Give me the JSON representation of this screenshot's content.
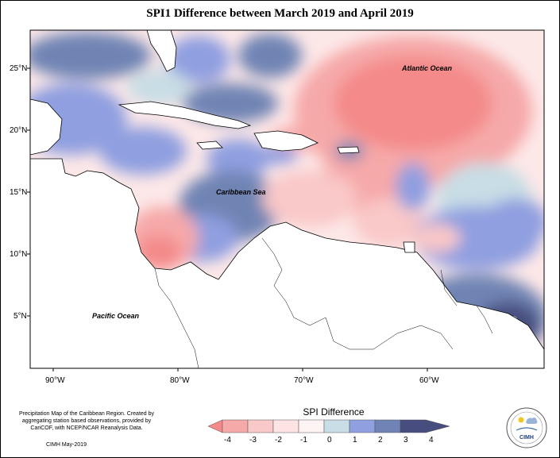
{
  "title": "SPI1 Difference between March 2019 and April 2019",
  "map": {
    "lat_labels": [
      "25°N",
      "20°N",
      "15°N",
      "10°N",
      "5°N"
    ],
    "lon_labels": [
      "90°W",
      "80°W",
      "70°W",
      "60°W"
    ],
    "place_labels": [
      "Atlantic Ocean",
      "Caribbean Sea",
      "Pacific Ocean"
    ]
  },
  "legend": {
    "title": "SPI Difference",
    "ticks": [
      "-4",
      "-3",
      "-2",
      "-1",
      "0",
      "1",
      "2",
      "3",
      "4"
    ],
    "colors": [
      "#f48a8a",
      "#f6a9a9",
      "#f9c8c8",
      "#fde3e3",
      "#fff4f4",
      "#c8dde5",
      "#8f9fe0",
      "#6f84b4",
      "#474d7e"
    ]
  },
  "footer": {
    "description": "Precipitation Map of the Caribbean Region. Created by aggregating station based observations, provided by CariCOF, with NCEP/NCAR Reanalysis Data.",
    "credit": "CIMH May-2019"
  },
  "logo": {
    "text": "CIMH"
  }
}
